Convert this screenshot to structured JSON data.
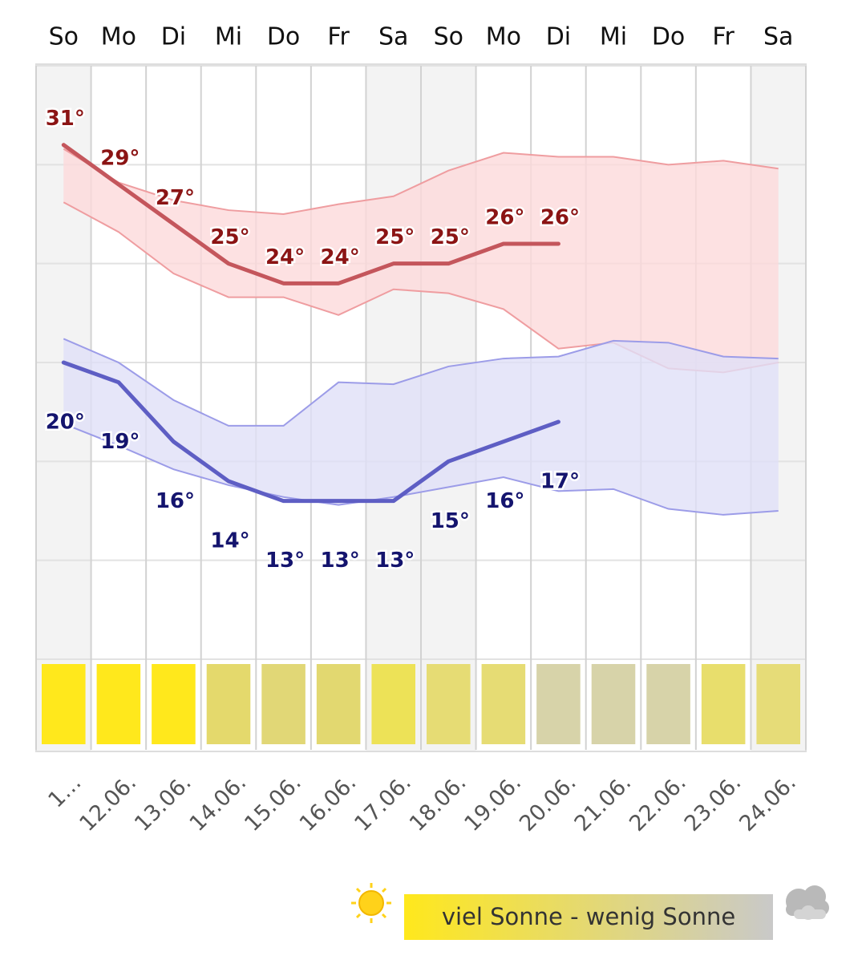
{
  "chart_data": {
    "type": "line",
    "weekdays": [
      "So",
      "Mo",
      "Di",
      "Mi",
      "Do",
      "Fr",
      "Sa",
      "So",
      "Mo",
      "Di",
      "Mi",
      "Do",
      "Fr",
      "Sa"
    ],
    "categories": [
      "1…",
      "12.06.",
      "13.06.",
      "14.06.",
      "15.06.",
      "16.06.",
      "17.06.",
      "18.06.",
      "19.06.",
      "20.06.",
      "21.06.",
      "22.06.",
      "23.06.",
      "24.06."
    ],
    "ylim": [
      5,
      35
    ],
    "yticks": [
      5,
      10,
      15,
      20,
      25,
      30,
      35
    ],
    "grid": true,
    "series": [
      {
        "color": "#c4565c",
        "label_color": "#8b1414",
        "values": [
          31,
          29,
          27,
          25,
          24,
          24,
          25,
          25,
          26,
          26,
          null,
          null,
          null,
          null
        ],
        "value_labels": [
          "31°",
          "29°",
          "27°",
          "25°",
          "24°",
          "24°",
          "25°",
          "25°",
          "26°",
          "26°",
          null,
          null,
          null,
          null
        ]
      },
      {
        "color": "#5e5ec4",
        "label_color": "#14146e",
        "values": [
          20,
          19,
          16,
          14,
          13,
          13,
          13,
          15,
          16,
          17,
          null,
          null,
          null,
          null
        ],
        "value_labels": [
          "20°",
          "19°",
          "16°",
          "14°",
          "13°",
          "13°",
          "13°",
          "15°",
          "16°",
          "17°",
          null,
          null,
          null,
          null
        ]
      }
    ],
    "bands": [
      {
        "color": "#fcdadb",
        "edge_color": "#ef9da0",
        "upper": [
          30.8,
          29.1,
          28.2,
          27.7,
          27.5,
          28.0,
          28.4,
          29.7,
          30.6,
          30.4,
          30.4,
          30.0,
          30.2,
          29.8
        ],
        "lower": [
          28.1,
          26.6,
          24.5,
          23.3,
          23.3,
          22.4,
          23.7,
          23.5,
          22.7,
          20.7,
          21.0,
          19.7,
          19.5,
          20.0
        ]
      },
      {
        "color": "#e0e0f7",
        "edge_color": "#9c9ce8",
        "upper": [
          21.2,
          20.0,
          18.1,
          16.8,
          16.8,
          19.0,
          18.9,
          19.8,
          20.2,
          20.3,
          21.1,
          21.0,
          20.3,
          20.2
        ],
        "lower": [
          16.9,
          15.8,
          14.6,
          13.8,
          13.2,
          12.8,
          13.2,
          13.7,
          14.2,
          13.5,
          13.6,
          12.6,
          12.3,
          12.5
        ]
      }
    ],
    "sun_colors": [
      "#ffe81c",
      "#ffe81c",
      "#ffe81c",
      "#e4d96c",
      "#e1d776",
      "#e2d870",
      "#ede257",
      "#e6dc74",
      "#e6dc74",
      "#d7d3a9",
      "#d7d3a9",
      "#d7d3a9",
      "#e8de6c",
      "#e6dc78"
    ],
    "legend_text": "viel Sonne - wenig Sonne"
  }
}
